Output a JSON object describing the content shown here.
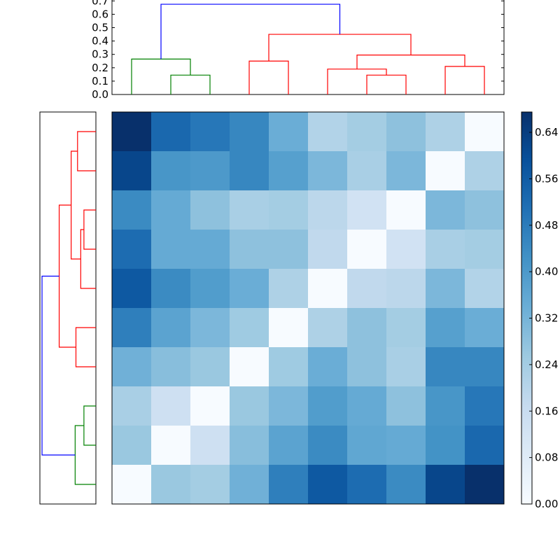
{
  "colors": {
    "cluster_a": "#008000",
    "cluster_b": "#ff0000",
    "root": "#0000ff",
    "colormap": "Blues"
  },
  "chart_data": [
    {
      "type": "dendrogram",
      "orientation": "top",
      "ylim": [
        0,
        0.7
      ],
      "yticks": [
        "0.0",
        "0.1",
        "0.2",
        "0.3",
        "0.4",
        "0.5",
        "0.6",
        "0.7"
      ],
      "links": [
        {
          "left": 1,
          "right": 2,
          "height": 0.145,
          "color": "#008000"
        },
        {
          "left": 0,
          "right": 1.5,
          "height": 0.265,
          "color": "#008000"
        },
        {
          "left": 3,
          "right": 4,
          "height": 0.25,
          "color": "#ff0000"
        },
        {
          "left": 6,
          "right": 7,
          "height": 0.145,
          "color": "#ff0000"
        },
        {
          "left": 5,
          "right": 6.5,
          "height": 0.19,
          "color": "#ff0000"
        },
        {
          "left": 8,
          "right": 9,
          "height": 0.21,
          "color": "#ff0000"
        },
        {
          "left": 5.75,
          "right": 8.5,
          "height": 0.295,
          "color": "#ff0000"
        },
        {
          "left": 3.5,
          "right": 7.125,
          "height": 0.45,
          "color": "#ff0000"
        },
        {
          "left": 0.75,
          "right": 5.3125,
          "height": 0.675,
          "color": "#0000ff"
        }
      ]
    },
    {
      "type": "dendrogram",
      "orientation": "left",
      "links": [
        {
          "left": 0,
          "right": 1,
          "height": 0.23,
          "color": "#ff0000"
        },
        {
          "left": 2,
          "right": 3,
          "height": 0.15,
          "color": "#ff0000"
        },
        {
          "left": 2.5,
          "right": 4,
          "height": 0.19,
          "color": "#ff0000"
        },
        {
          "left": 0.5,
          "right": 3.25,
          "height": 0.31,
          "color": "#ff0000"
        },
        {
          "left": 5,
          "right": 6,
          "height": 0.25,
          "color": "#ff0000"
        },
        {
          "left": 1.875,
          "right": 5.5,
          "height": 0.46,
          "color": "#ff0000"
        },
        {
          "left": 7,
          "right": 8,
          "height": 0.15,
          "color": "#008000"
        },
        {
          "left": 7.5,
          "right": 9,
          "height": 0.26,
          "color": "#008000"
        },
        {
          "left": 3.6875,
          "right": 8.25,
          "height": 0.675,
          "color": "#0000ff"
        }
      ]
    },
    {
      "type": "heatmap",
      "colormap": "Blues",
      "vmin": 0,
      "vmax": 0.675,
      "values": [
        [
          0.675,
          0.53,
          0.49,
          0.45,
          0.34,
          0.21,
          0.24,
          0.28,
          0.22,
          0.0
        ],
        [
          0.62,
          0.41,
          0.4,
          0.45,
          0.38,
          0.31,
          0.23,
          0.31,
          0.0,
          0.22
        ],
        [
          0.44,
          0.35,
          0.28,
          0.23,
          0.24,
          0.19,
          0.13,
          0.0,
          0.31,
          0.28
        ],
        [
          0.52,
          0.35,
          0.35,
          0.28,
          0.28,
          0.18,
          0.0,
          0.13,
          0.23,
          0.24
        ],
        [
          0.57,
          0.44,
          0.39,
          0.34,
          0.22,
          0.0,
          0.18,
          0.19,
          0.31,
          0.21
        ],
        [
          0.47,
          0.37,
          0.31,
          0.25,
          0.0,
          0.22,
          0.28,
          0.24,
          0.38,
          0.34
        ],
        [
          0.33,
          0.29,
          0.26,
          0.0,
          0.25,
          0.34,
          0.28,
          0.23,
          0.45,
          0.45
        ],
        [
          0.23,
          0.14,
          0.0,
          0.26,
          0.31,
          0.39,
          0.35,
          0.28,
          0.41,
          0.49
        ],
        [
          0.26,
          0.0,
          0.14,
          0.29,
          0.37,
          0.44,
          0.36,
          0.35,
          0.42,
          0.53
        ],
        [
          0.0,
          0.26,
          0.24,
          0.33,
          0.47,
          0.57,
          0.52,
          0.44,
          0.62,
          0.675
        ]
      ],
      "colorbar": {
        "ticks": [
          "0.00",
          "0.08",
          "0.16",
          "0.24",
          "0.32",
          "0.40",
          "0.48",
          "0.56",
          "0.64"
        ]
      }
    }
  ]
}
